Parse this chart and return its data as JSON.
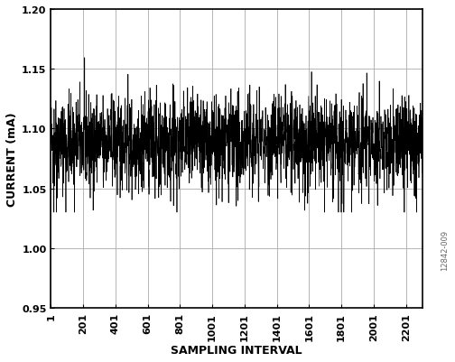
{
  "title": "",
  "xlabel": "SAMPLING INTERVAL",
  "ylabel": "CURRENT (mA)",
  "watermark": "12842-009",
  "ylim": [
    0.95,
    1.2
  ],
  "xlim": [
    1,
    2301
  ],
  "yticks": [
    0.95,
    1.0,
    1.05,
    1.1,
    1.15,
    1.2
  ],
  "xticks": [
    1,
    201,
    401,
    601,
    801,
    1001,
    1201,
    1401,
    1601,
    1801,
    2001,
    2201
  ],
  "signal_mean": 1.09,
  "signal_std": 0.018,
  "signal_min_clip": 1.03,
  "signal_max_clip": 1.16,
  "n_samples": 2301,
  "line_color": "#000000",
  "background_color": "#ffffff",
  "grid_color": "#aaaaaa",
  "xlabel_fontsize": 9,
  "ylabel_fontsize": 9,
  "tick_fontsize": 8,
  "watermark_fontsize": 6,
  "seed": 42
}
